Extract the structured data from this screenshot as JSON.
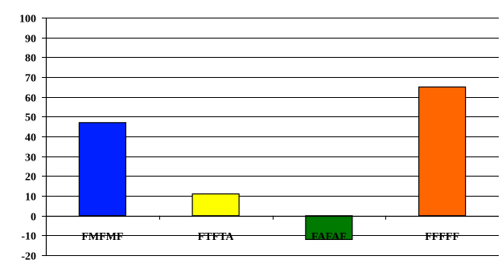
{
  "chart_data": {
    "type": "bar",
    "title": "",
    "xlabel": "",
    "ylabel": "",
    "categories": [
      "FMFMF",
      "FTFTA",
      "FAFAF",
      "FFFFF"
    ],
    "values": [
      47,
      11,
      -12,
      65
    ],
    "colors": [
      "#0020FF",
      "#FFFF00",
      "#007A00",
      "#FF6600"
    ],
    "ylim": [
      -20,
      100
    ],
    "yticks": [
      -20,
      -10,
      0,
      10,
      20,
      30,
      40,
      50,
      60,
      70,
      80,
      90,
      100
    ],
    "grid": true,
    "legend": "none"
  }
}
